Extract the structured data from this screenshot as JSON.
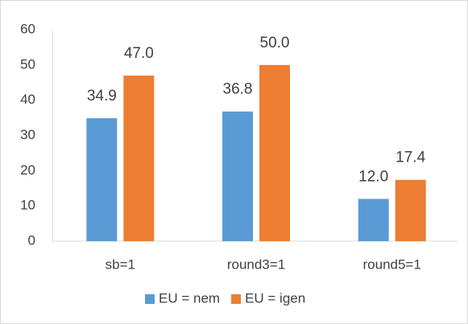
{
  "chart_data": {
    "type": "bar",
    "categories": [
      "sb=1",
      "round3=1",
      "round5=1"
    ],
    "series": [
      {
        "name": "EU = nem",
        "color": "#5b9bd5",
        "values": [
          34.9,
          36.8,
          12.0
        ],
        "value_labels": [
          "34.9",
          "36.8",
          "12.0"
        ]
      },
      {
        "name": "EU = igen",
        "color": "#ed7d31",
        "values": [
          47.0,
          50.0,
          17.4
        ],
        "value_labels": [
          "47.0",
          "50.0",
          "17.4"
        ]
      }
    ],
    "ylim": [
      0,
      60
    ],
    "yticks": [
      0,
      10,
      20,
      30,
      40,
      50,
      60
    ],
    "grid": false,
    "legend": "bottom"
  }
}
